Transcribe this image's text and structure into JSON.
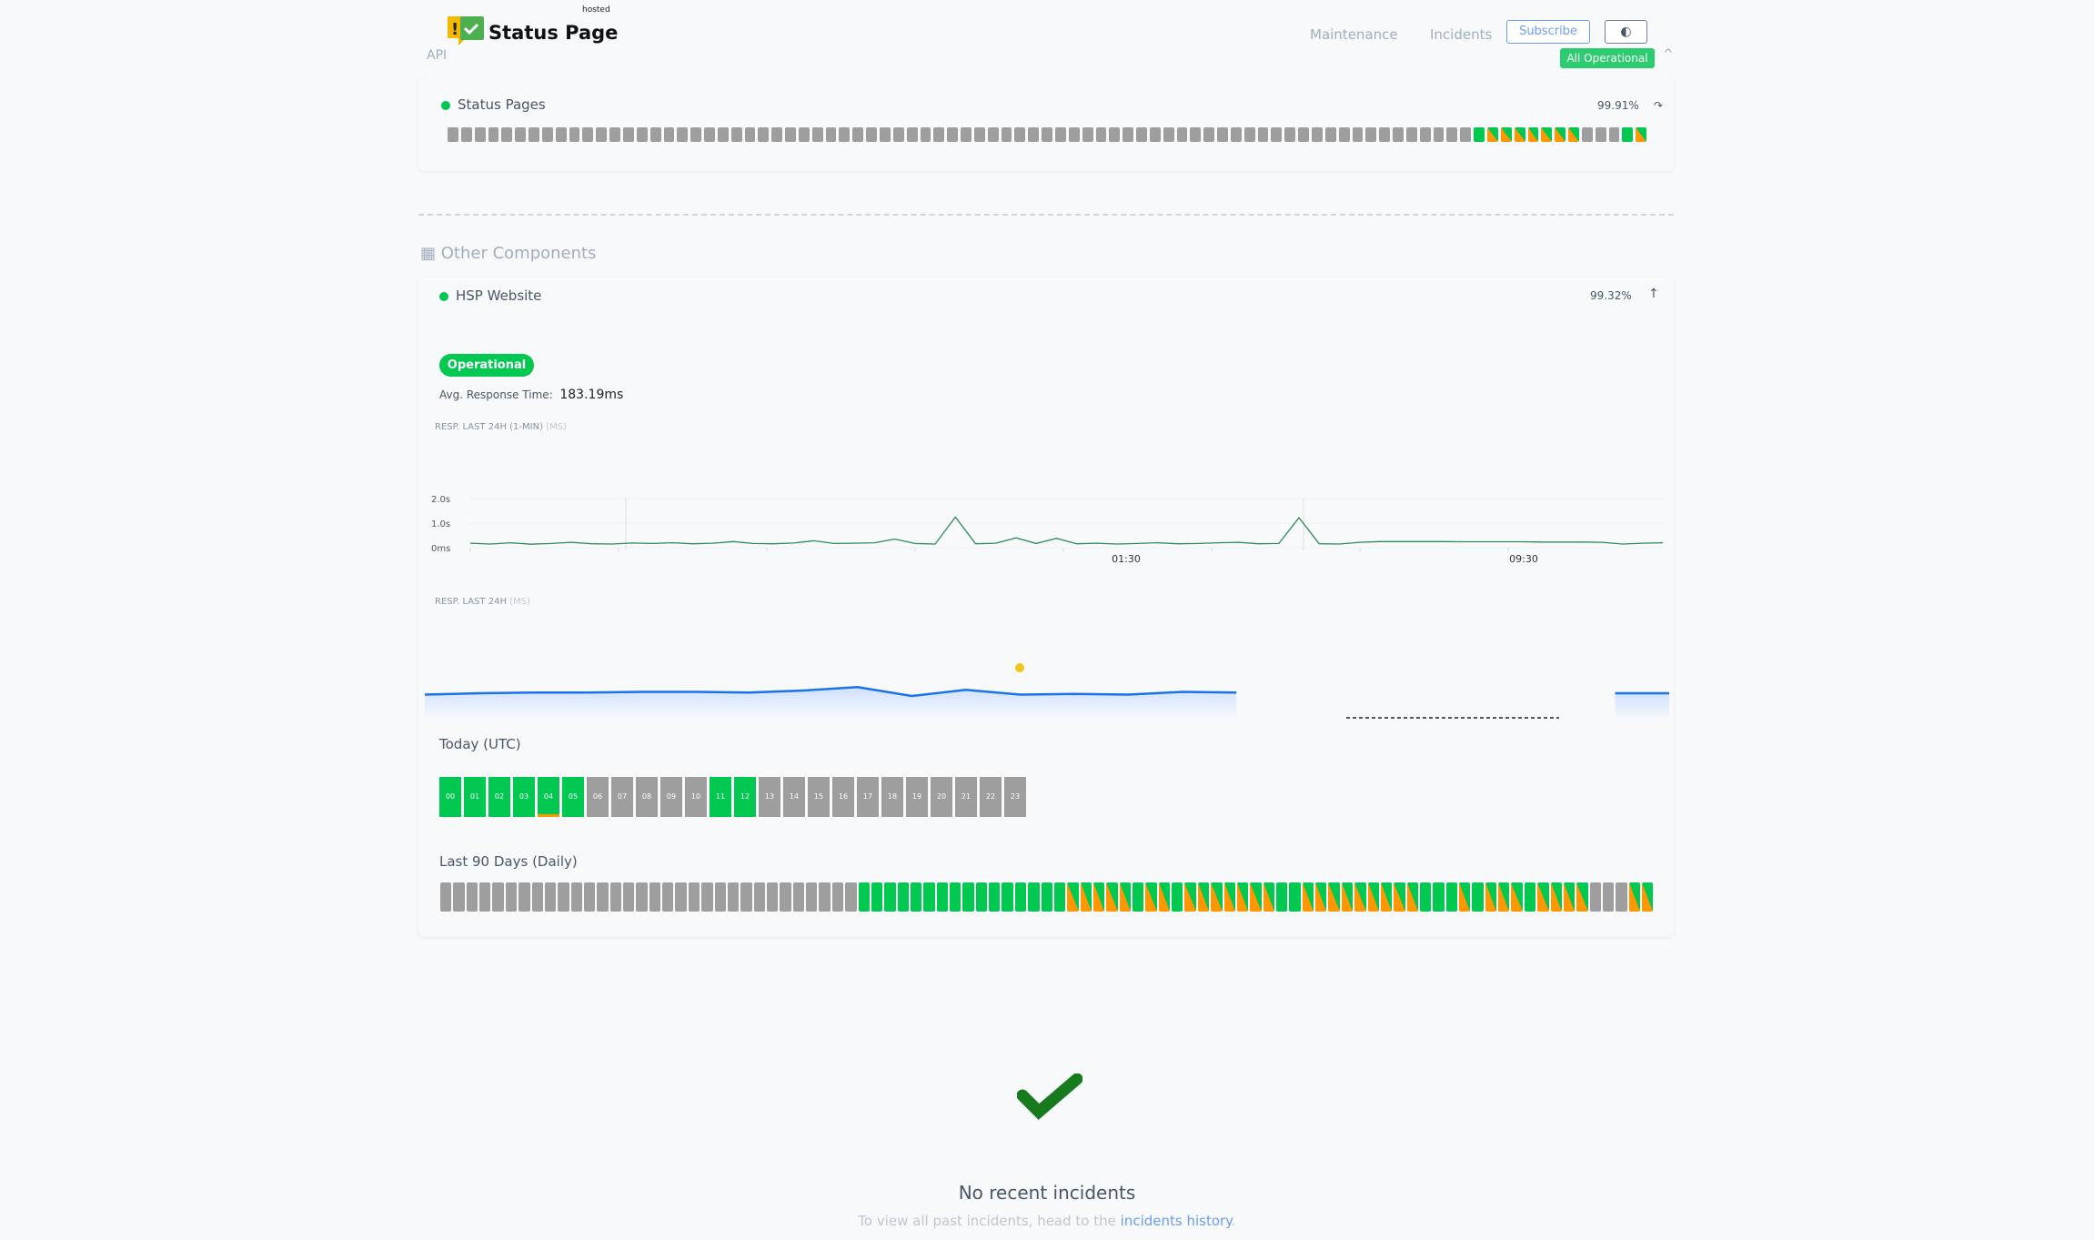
{
  "header": {
    "logo_text": "Status Page",
    "logo_hosted": "hosted",
    "api_label": "API",
    "nav": [
      "Maintenance",
      "Incidents"
    ],
    "subscribe": "Subscribe",
    "theme_icon": "contrast-icon",
    "overall_status": "All Operational"
  },
  "status_pages": {
    "name": "Status Pages",
    "uptime": "99.91%",
    "days": "nnnnnnnnnnnnnnnnnnnnnnnnnnnnnnnnnnnnnnnnnnnnnnnnnnnnnnnnnnnnnnnnnnnnnnnnnnnnupppppppnnnup"
  },
  "other": {
    "title": "Other Components"
  },
  "hsp": {
    "name": "HSP Website",
    "uptime": "99.32%",
    "status": "Operational",
    "avg_label": "Avg. Response Time:",
    "avg_value": "183.19ms",
    "chart1_label": "RESP. LAST 24H (1-MIN)",
    "chart1_unit": "(MS)",
    "chart2_label": "RESP. LAST 24H",
    "chart2_unit": "(MS)",
    "today_label": "Today (UTC)",
    "hours": [
      "00",
      "01",
      "02",
      "03",
      "04",
      "05",
      "06",
      "07",
      "08",
      "09",
      "10",
      "11",
      "12",
      "13",
      "14",
      "15",
      "16",
      "17",
      "18",
      "19",
      "20",
      "21",
      "22",
      "23"
    ],
    "hour_status": "uuuuwunnnnnuunnnnnnnnnnn",
    "days_label": "Last 90 Days (Daily)",
    "days": "nnnnnnnnnnnnnnnnnnnnnnnnnnnnnnnnuuuuuuuuuuuuuuuupppppuppupppppppuupppppppppuuupupppuppppnnnpp"
  },
  "chart_data": [
    {
      "type": "line",
      "ylabel": "",
      "yticks": [
        "0ms",
        "1.0s",
        "2.0s"
      ],
      "ylim": [
        0,
        2.0
      ],
      "xticks": [
        "01:30",
        "09:30"
      ],
      "color": "#2e8b57",
      "values": [
        0.18,
        0.15,
        0.2,
        0.14,
        0.17,
        0.22,
        0.16,
        0.15,
        0.19,
        0.17,
        0.2,
        0.16,
        0.18,
        0.25,
        0.17,
        0.16,
        0.19,
        0.28,
        0.17,
        0.18,
        0.2,
        0.35,
        0.17,
        0.15,
        1.25,
        0.16,
        0.18,
        0.4,
        0.17,
        0.38,
        0.16,
        0.18,
        0.15,
        0.17,
        0.2,
        0.16,
        0.17,
        0.2,
        0.22,
        0.16,
        0.17,
        1.22,
        0.16,
        0.15,
        0.22,
        0.25,
        0.25,
        0.25,
        0.25,
        0.24,
        0.24,
        0.24,
        0.24,
        0.23,
        0.23,
        0.23,
        0.22,
        0.15,
        0.18,
        0.2
      ]
    },
    {
      "type": "area",
      "ylabel": "",
      "color": "#1a73e8",
      "values": [
        0.42,
        0.44,
        0.45,
        0.45,
        0.46,
        0.46,
        0.45,
        0.48,
        0.53,
        0.4,
        0.49,
        0.42,
        0.43,
        0.42,
        0.46,
        0.45,
        null,
        null,
        null,
        null,
        null,
        null,
        0.44,
        0.44
      ]
    }
  ],
  "incidents": {
    "title": "No recent incidents",
    "text": "To view all past incidents, head to the",
    "link": "incidents history",
    "end": "."
  }
}
